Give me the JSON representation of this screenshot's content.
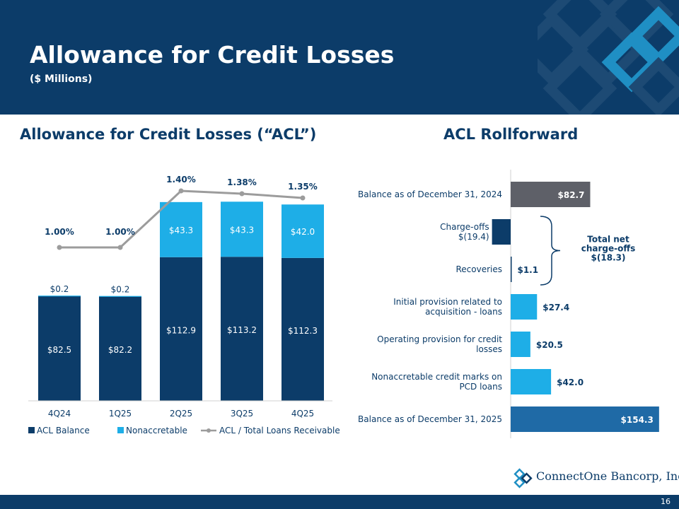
{
  "header": {
    "title": "Allowance for Credit Losses",
    "subtitle": "($ Millions)"
  },
  "colors": {
    "navy": "#0c3c69",
    "light_blue": "#1eaee7",
    "gray": "#5e6068",
    "line_gray": "#9c9c9c",
    "mid_blue": "#1f6aa6"
  },
  "left_title": "Allowance for Credit Losses (“ACL”)",
  "right_title": "ACL Rollforward",
  "chart_data": [
    {
      "type": "bar",
      "stacked": true,
      "title": "Allowance for Credit Losses (“ACL”)",
      "categories": [
        "4Q24",
        "1Q25",
        "2Q25",
        "3Q25",
        "4Q25"
      ],
      "series": [
        {
          "name": "ACL Balance",
          "values": [
            82.5,
            82.2,
            112.9,
            113.2,
            112.3
          ],
          "labels": [
            "$82.5",
            "$82.2",
            "$112.9",
            "$113.2",
            "$112.3"
          ]
        },
        {
          "name": "Nonaccretable",
          "values": [
            0.2,
            0.2,
            43.3,
            43.3,
            42.0
          ],
          "labels": [
            "$0.2",
            "$0.2",
            "$43.3",
            "$43.3",
            "$42.0"
          ]
        },
        {
          "name": "ACL / Total Loans Receivable",
          "type": "line",
          "values": [
            1.0,
            1.0,
            1.4,
            1.38,
            1.35
          ],
          "labels": [
            "1.00%",
            "1.00%",
            "1.40%",
            "1.38%",
            "1.35%"
          ]
        }
      ],
      "legend_position": "bottom"
    },
    {
      "type": "bar",
      "orientation": "horizontal",
      "title": "ACL Rollforward",
      "categories": [
        "Balance as of December 31, 2024",
        "Charge-offs\n$(19.4)",
        "Recoveries",
        "Initial provision related to\nacquisition - loans",
        "Operating provision for credit\nlosses",
        "Nonaccretable credit marks on\nPCD loans",
        "Balance as of December 31, 2025"
      ],
      "values": [
        82.7,
        -19.4,
        1.1,
        27.4,
        20.5,
        42.0,
        154.3
      ],
      "value_labels": [
        "$82.7",
        "",
        "$1.1",
        "$27.4",
        "$20.5",
        "$42.0",
        "$154.3"
      ],
      "bracket_label": "Total net\ncharge-offs\n$(18.3)"
    }
  ],
  "logo": {
    "text": "ConnectOne Bancorp, Inc."
  },
  "footer": {
    "page": "16"
  }
}
